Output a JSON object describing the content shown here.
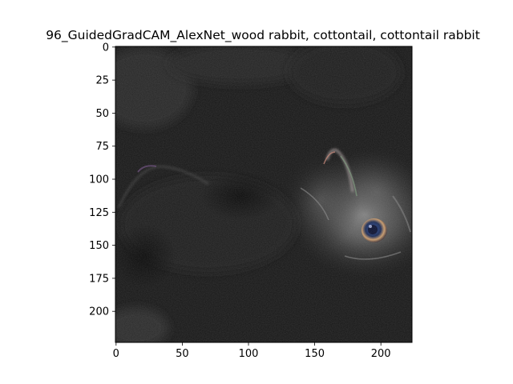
{
  "figure": {
    "title": "96_GuidedGradCAM_AlexNet_wood rabbit, cottontail, cottontail rabbit"
  },
  "image_axes": {
    "x_ticks": [
      {
        "value": 0,
        "label": "0"
      },
      {
        "value": 50,
        "label": "50"
      },
      {
        "value": 100,
        "label": "100"
      },
      {
        "value": 150,
        "label": "150"
      },
      {
        "value": 200,
        "label": "200"
      }
    ],
    "y_ticks": [
      {
        "value": 0,
        "label": "0"
      },
      {
        "value": 25,
        "label": "25"
      },
      {
        "value": 50,
        "label": "50"
      },
      {
        "value": 75,
        "label": "75"
      },
      {
        "value": 100,
        "label": "100"
      },
      {
        "value": 125,
        "label": "125"
      },
      {
        "value": 150,
        "label": "150"
      },
      {
        "value": 175,
        "label": "175"
      },
      {
        "value": 200,
        "label": "200"
      }
    ],
    "x_range": [
      0,
      224
    ],
    "y_range": [
      0,
      224
    ]
  },
  "colors": {
    "background": "#ffffff",
    "heatmap_dark": "#141414",
    "heatmap_glow": "#8c8c8c"
  }
}
